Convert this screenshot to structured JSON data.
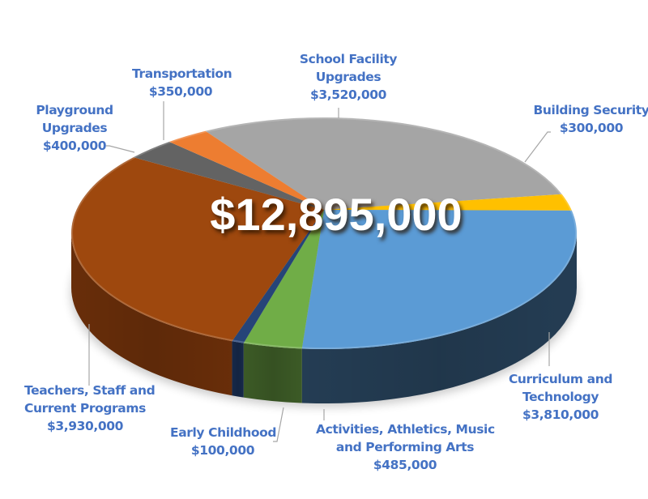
{
  "chart_data": {
    "type": "pie",
    "style": "3d",
    "title": "",
    "center_label": "$12,895,000",
    "total": 12895000,
    "slices": [
      {
        "label": "School Facility Upgrades",
        "value": 3520000,
        "display": "$3,520,000",
        "color": "#A5A5A5",
        "side": "#7C7C7C"
      },
      {
        "label": "Building Security",
        "value": 300000,
        "display": "$300,000",
        "color": "#FFC000",
        "side": "#BF9000"
      },
      {
        "label": "Curriculum and Technology",
        "value": 3810000,
        "display": "$3,810,000",
        "color": "#5B9BD5",
        "side": "#264058"
      },
      {
        "label": "Activities, Athletics, Music and Performing Arts",
        "value": 485000,
        "display": "$485,000",
        "color": "#70AD47",
        "side": "#3F5F28"
      },
      {
        "label": "Early Childhood",
        "value": 100000,
        "display": "$100,000",
        "color": "#264478",
        "side": "#172B4D"
      },
      {
        "label": "Teachers, Staff and Current Programs",
        "value": 3930000,
        "display": "$3,930,000",
        "color": "#9E480E",
        "side": "#6E300A"
      },
      {
        "label": "Playground Upgrades",
        "value": 400000,
        "display": "$400,000",
        "color": "#636363",
        "side": "#474747"
      },
      {
        "label": "Transportation",
        "value": 350000,
        "display": "$350,000",
        "color": "#ED7D31",
        "side": "#B25E24"
      }
    ],
    "legend": "none",
    "data_labels": "category name and value with leader lines"
  },
  "labels": {
    "school": {
      "line1": "School Facility",
      "line2": "Upgrades",
      "value": "$3,520,000"
    },
    "security": {
      "line1": "Building Security",
      "value": "$300,000"
    },
    "curriculum": {
      "line1": "Curriculum and",
      "line2": "Technology",
      "value": "$3,810,000"
    },
    "activities": {
      "line1": "Activities, Athletics, Music",
      "line2": "and Performing Arts",
      "value": "$485,000"
    },
    "early": {
      "line1": "Early Childhood",
      "value": "$100,000"
    },
    "teachers": {
      "line1": "Teachers, Staff and",
      "line2": "Current Programs",
      "value": "$3,930,000"
    },
    "playground": {
      "line1": "Playground",
      "line2": "Upgrades",
      "value": "$400,000"
    },
    "transport": {
      "line1": "Transportation",
      "value": "$350,000"
    }
  }
}
